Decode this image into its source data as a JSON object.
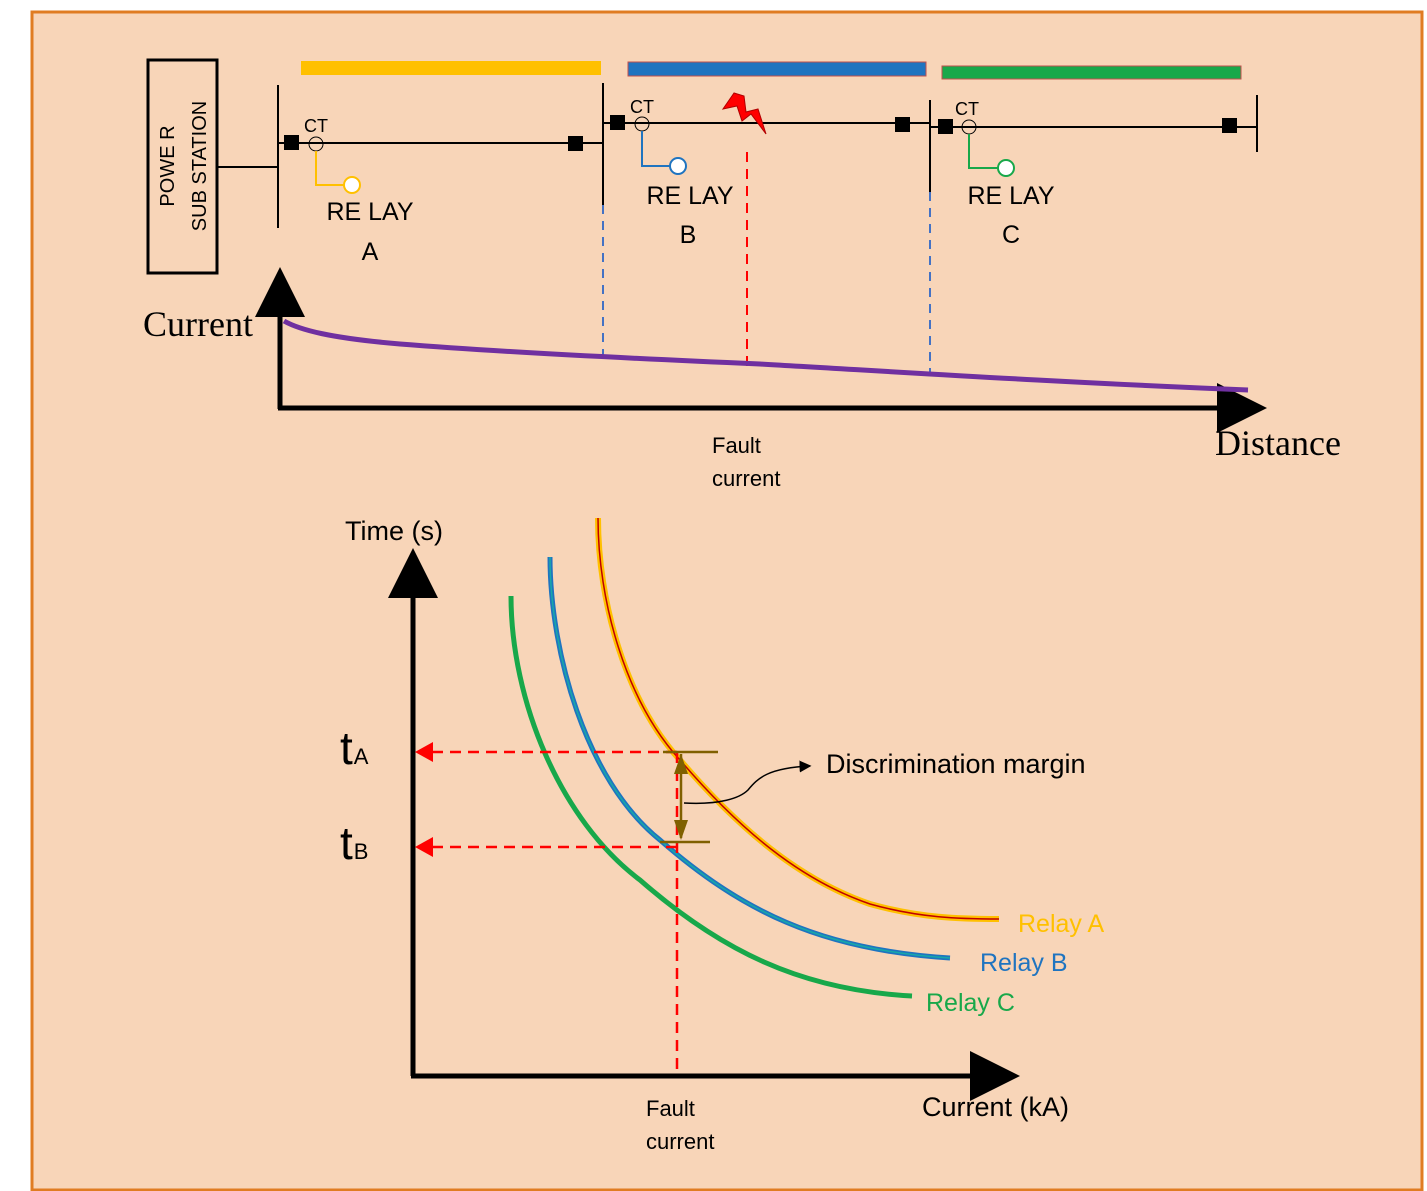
{
  "colors": {
    "background": "#f8d5b8",
    "border": "#e07c22",
    "relay_a": "#ffc000",
    "relay_b": "#1f74c0",
    "relay_c": "#18a84a",
    "fault": "#ff0000",
    "distance_curve": "#7030a0",
    "margin_marker": "#806000"
  },
  "substation": {
    "label_line1": "POWE R",
    "label_line2": "SUB STATION"
  },
  "relays": [
    {
      "ct_label": "CT",
      "relay_label": "RE LAY",
      "relay_letter": "A"
    },
    {
      "ct_label": "CT",
      "relay_label": "RE LAY",
      "relay_letter": "B"
    },
    {
      "ct_label": "CT",
      "relay_label": "RE LAY",
      "relay_letter": "C"
    }
  ],
  "fault_icon": "lightning-bolt-icon",
  "top_graph": {
    "ylabel": "Current",
    "xlabel": "Distance",
    "fault_label_line1": "Fault",
    "fault_label_line2": "current"
  },
  "chart_data": {
    "type": "line",
    "title": "",
    "xlabel": "Current (kA)",
    "ylabel": "Time (s)",
    "series": [
      {
        "name": "Relay A",
        "color": "#ffc000"
      },
      {
        "name": "Relay B",
        "color": "#1f74c0"
      },
      {
        "name": "Relay C",
        "color": "#18a84a"
      }
    ],
    "y_markers": [
      {
        "label": "t",
        "subscript": "A"
      },
      {
        "label": "t",
        "subscript": "B"
      }
    ],
    "fault_label_line1": "Fault",
    "fault_label_line2": "current",
    "annotation": "Discrimination margin"
  }
}
